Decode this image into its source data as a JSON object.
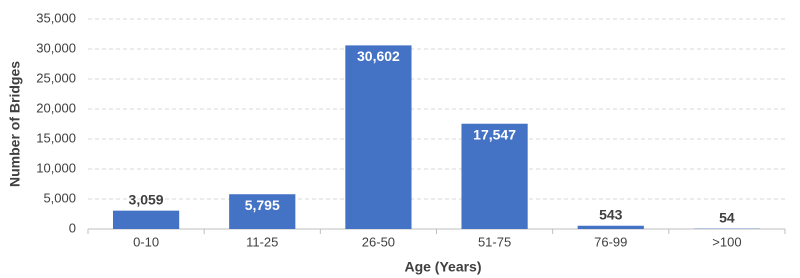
{
  "chart_data": {
    "type": "bar",
    "x_label": "Age (Years)",
    "y_label": "Number of Bridges",
    "categories": [
      "0-10",
      "11-25",
      "26-50",
      "51-75",
      "76-99",
      ">100"
    ],
    "values": [
      3059,
      5795,
      30602,
      17547,
      543,
      54
    ],
    "value_labels": [
      "3,059",
      "5,795",
      "30,602",
      "17,547",
      "543",
      "54"
    ],
    "color": "#4472c4",
    "ylim": [
      0,
      35000
    ],
    "yticks": [
      0,
      {
        "value": 5000,
        "label": "5,000"
      },
      {
        "value": 10000,
        "label": "10,000"
      },
      {
        "value": 15000,
        "label": "15,000"
      },
      {
        "value": 20000,
        "label": "20,000"
      },
      {
        "value": 25000,
        "label": "25,000"
      },
      {
        "value": 30000,
        "label": "30,000"
      },
      {
        "value": 35000,
        "label": "35,000"
      }
    ],
    "grid": true
  }
}
